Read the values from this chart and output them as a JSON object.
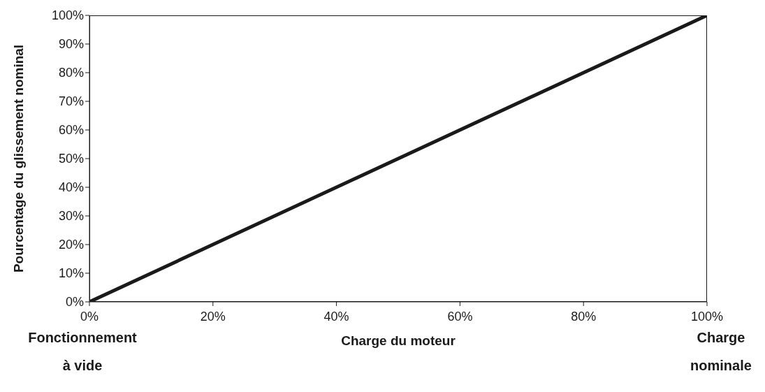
{
  "chart_data": {
    "type": "line",
    "xlabel": "Charge du moteur",
    "ylabel": "Pourcentage du glissement nominal",
    "x": [
      0,
      100
    ],
    "series": [
      {
        "color": "#1a1a1a",
        "values": [
          0,
          100
        ]
      }
    ],
    "xlim": [
      0,
      100
    ],
    "ylim": [
      0,
      100
    ],
    "xticks": [
      {
        "value": 0,
        "label": "0%"
      },
      {
        "value": 20,
        "label": "20%"
      },
      {
        "value": 40,
        "label": "40%"
      },
      {
        "value": 60,
        "label": "60%"
      },
      {
        "value": 80,
        "label": "80%"
      },
      {
        "value": 100,
        "label": "100%"
      }
    ],
    "yticks": [
      {
        "value": 0,
        "label": "0%"
      },
      {
        "value": 10,
        "label": "10%"
      },
      {
        "value": 20,
        "label": "20%"
      },
      {
        "value": 30,
        "label": "30%"
      },
      {
        "value": 40,
        "label": "40%"
      },
      {
        "value": 50,
        "label": "50%"
      },
      {
        "value": 60,
        "label": "60%"
      },
      {
        "value": 70,
        "label": "70%"
      },
      {
        "value": 80,
        "label": "80%"
      },
      {
        "value": 90,
        "label": "90%"
      },
      {
        "value": 100,
        "label": "100%"
      }
    ],
    "marker": "none",
    "line_style": "solid",
    "annotations": [
      "Fonctionnement à vide",
      "Charge nominale"
    ]
  }
}
